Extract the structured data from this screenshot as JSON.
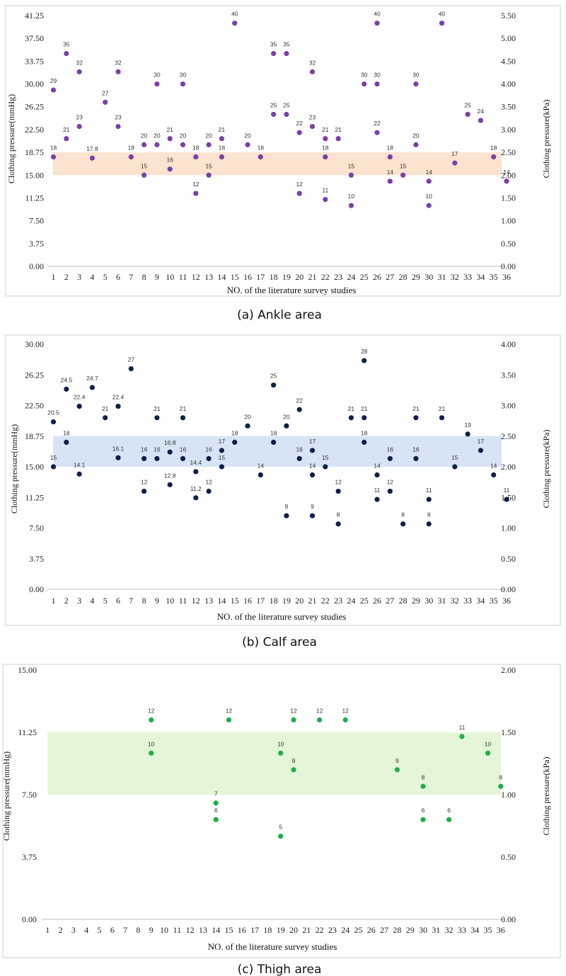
{
  "figure": {
    "panels": [
      "a",
      "b",
      "c"
    ]
  },
  "chart_data": [
    {
      "type": "scatter",
      "caption": "(a) Ankle area",
      "xlabel": "NO. of the literature survey studies",
      "ylabel": "Clothing pressure(mmHg)",
      "ylabel_right": "Clothing pressure(kPa)",
      "x_ticks": [
        "1",
        "2",
        "3",
        "4",
        "5",
        "6",
        "7",
        "8",
        "9",
        "10",
        "11",
        "12",
        "13",
        "14",
        "15",
        "16",
        "17",
        "18",
        "19",
        "20",
        "21",
        "22",
        "23",
        "24",
        "25",
        "26",
        "27",
        "28",
        "29",
        "30",
        "31",
        "32",
        "33",
        "34",
        "35",
        "36"
      ],
      "ylim": [
        0,
        41.25
      ],
      "y_ticks": [
        "0.00",
        "3.75",
        "7.50",
        "11.25",
        "15.00",
        "18.75",
        "22.50",
        "26.25",
        "30.00",
        "33.75",
        "37.50",
        "41.25"
      ],
      "y2lim": [
        0,
        5.5
      ],
      "y2_ticks": [
        "0.00",
        "0.50",
        "1.00",
        "1.50",
        "2.00",
        "2.50",
        "3.00",
        "3.50",
        "4.00",
        "4.50",
        "5.00",
        "5.50"
      ],
      "band": [
        15,
        18.75
      ],
      "colors": {
        "marker": "#7b3fa8",
        "band": "#fbe3cf"
      },
      "points": [
        {
          "x": 1,
          "y": 29,
          "label": "29"
        },
        {
          "x": 1,
          "y": 18,
          "label": "18"
        },
        {
          "x": 2,
          "y": 35,
          "label": "35"
        },
        {
          "x": 2,
          "y": 21,
          "label": "21"
        },
        {
          "x": 3,
          "y": 32,
          "label": "32"
        },
        {
          "x": 3,
          "y": 23,
          "label": "23"
        },
        {
          "x": 4,
          "y": 17.8,
          "label": "17.8"
        },
        {
          "x": 5,
          "y": 27,
          "label": "27"
        },
        {
          "x": 6,
          "y": 32,
          "label": "32"
        },
        {
          "x": 6,
          "y": 23,
          "label": "23"
        },
        {
          "x": 7,
          "y": 18,
          "label": "18"
        },
        {
          "x": 8,
          "y": 20,
          "label": "20"
        },
        {
          "x": 8,
          "y": 15,
          "label": "15"
        },
        {
          "x": 9,
          "y": 30,
          "label": "30"
        },
        {
          "x": 9,
          "y": 20,
          "label": "20"
        },
        {
          "x": 10,
          "y": 21,
          "label": "21"
        },
        {
          "x": 10,
          "y": 16,
          "label": "16"
        },
        {
          "x": 11,
          "y": 30,
          "label": "30"
        },
        {
          "x": 11,
          "y": 20,
          "label": "20"
        },
        {
          "x": 12,
          "y": 18,
          "label": "18"
        },
        {
          "x": 12,
          "y": 12,
          "label": "12"
        },
        {
          "x": 13,
          "y": 20,
          "label": "20"
        },
        {
          "x": 13,
          "y": 15,
          "label": "15"
        },
        {
          "x": 14,
          "y": 21,
          "label": "21"
        },
        {
          "x": 14,
          "y": 18,
          "label": "18"
        },
        {
          "x": 15,
          "y": 40,
          "label": "40"
        },
        {
          "x": 16,
          "y": 20,
          "label": "20"
        },
        {
          "x": 17,
          "y": 18,
          "label": "18"
        },
        {
          "x": 18,
          "y": 35,
          "label": "35"
        },
        {
          "x": 18,
          "y": 25,
          "label": "25"
        },
        {
          "x": 19,
          "y": 35,
          "label": "35"
        },
        {
          "x": 19,
          "y": 25,
          "label": "25"
        },
        {
          "x": 20,
          "y": 22,
          "label": "22"
        },
        {
          "x": 20,
          "y": 12,
          "label": "12"
        },
        {
          "x": 21,
          "y": 32,
          "label": "32"
        },
        {
          "x": 21,
          "y": 23,
          "label": "23"
        },
        {
          "x": 22,
          "y": 21,
          "label": "21"
        },
        {
          "x": 22,
          "y": 18,
          "label": "18"
        },
        {
          "x": 22,
          "y": 11,
          "label": "11"
        },
        {
          "x": 23,
          "y": 21,
          "label": "21"
        },
        {
          "x": 24,
          "y": 15,
          "label": "15"
        },
        {
          "x": 24,
          "y": 10,
          "label": "10"
        },
        {
          "x": 25,
          "y": 30,
          "label": "30"
        },
        {
          "x": 26,
          "y": 40,
          "label": "40"
        },
        {
          "x": 26,
          "y": 30,
          "label": "30"
        },
        {
          "x": 26,
          "y": 22,
          "label": "22"
        },
        {
          "x": 27,
          "y": 18,
          "label": "18"
        },
        {
          "x": 27,
          "y": 14,
          "label": "14"
        },
        {
          "x": 28,
          "y": 15,
          "label": "15"
        },
        {
          "x": 29,
          "y": 30,
          "label": "30"
        },
        {
          "x": 29,
          "y": 20,
          "label": "20"
        },
        {
          "x": 30,
          "y": 14,
          "label": "14"
        },
        {
          "x": 30,
          "y": 10,
          "label": "10"
        },
        {
          "x": 31,
          "y": 40,
          "label": "40"
        },
        {
          "x": 32,
          "y": 17,
          "label": "17"
        },
        {
          "x": 33,
          "y": 25,
          "label": "25"
        },
        {
          "x": 34,
          "y": 24,
          "label": "24"
        },
        {
          "x": 35,
          "y": 18,
          "label": "18"
        },
        {
          "x": 36,
          "y": 14,
          "label": "14"
        }
      ]
    },
    {
      "type": "scatter",
      "caption": "(b) Calf area",
      "xlabel": "NO. of the literature survey studies",
      "ylabel": "Clothing pressure(mmHg)",
      "ylabel_right": "Clothing pressure(kPa)",
      "x_ticks": [
        "1",
        "2",
        "3",
        "4",
        "5",
        "6",
        "7",
        "8",
        "9",
        "10",
        "11",
        "12",
        "13",
        "14",
        "15",
        "16",
        "17",
        "18",
        "19",
        "20",
        "21",
        "22",
        "23",
        "24",
        "25",
        "26",
        "27",
        "28",
        "29",
        "30",
        "31",
        "32",
        "33",
        "34",
        "35",
        "36"
      ],
      "ylim": [
        0,
        30
      ],
      "y_ticks": [
        "0.00",
        "3.75",
        "7.50",
        "11.25",
        "15.00",
        "18.75",
        "22.50",
        "26.25",
        "30.00"
      ],
      "y2lim": [
        0,
        4
      ],
      "y2_ticks": [
        "0.00",
        "0.50",
        "1.00",
        "1.50",
        "2.00",
        "2.50",
        "3.00",
        "3.50",
        "4.00"
      ],
      "band": [
        15,
        18.75
      ],
      "colors": {
        "marker": "#0f1f4a",
        "band": "#d6e4f5"
      },
      "points": [
        {
          "x": 1,
          "y": 20.5,
          "label": "20.5"
        },
        {
          "x": 1,
          "y": 15,
          "label": "15"
        },
        {
          "x": 2,
          "y": 24.5,
          "label": "24.5"
        },
        {
          "x": 2,
          "y": 18,
          "label": "18"
        },
        {
          "x": 3,
          "y": 22.4,
          "label": "22.4"
        },
        {
          "x": 3,
          "y": 14.1,
          "label": "14.1"
        },
        {
          "x": 4,
          "y": 24.7,
          "label": "24.7"
        },
        {
          "x": 5,
          "y": 21,
          "label": "21"
        },
        {
          "x": 6,
          "y": 22.4,
          "label": "22.4"
        },
        {
          "x": 6,
          "y": 16.1,
          "label": "16.1"
        },
        {
          "x": 7,
          "y": 27,
          "label": "27"
        },
        {
          "x": 8,
          "y": 16,
          "label": "16"
        },
        {
          "x": 8,
          "y": 12,
          "label": "12"
        },
        {
          "x": 9,
          "y": 21,
          "label": "21"
        },
        {
          "x": 9,
          "y": 16,
          "label": "16"
        },
        {
          "x": 10,
          "y": 16.8,
          "label": "16.8"
        },
        {
          "x": 10,
          "y": 12.8,
          "label": "12.8"
        },
        {
          "x": 11,
          "y": 21,
          "label": "21"
        },
        {
          "x": 11,
          "y": 16,
          "label": "16"
        },
        {
          "x": 12,
          "y": 14.4,
          "label": "14.4"
        },
        {
          "x": 12,
          "y": 11.2,
          "label": "11.2"
        },
        {
          "x": 13,
          "y": 16,
          "label": "16"
        },
        {
          "x": 13,
          "y": 12,
          "label": "12"
        },
        {
          "x": 14,
          "y": 17,
          "label": "17"
        },
        {
          "x": 14,
          "y": 15,
          "label": "15"
        },
        {
          "x": 15,
          "y": 18,
          "label": "18"
        },
        {
          "x": 16,
          "y": 20,
          "label": "20"
        },
        {
          "x": 17,
          "y": 14,
          "label": "14"
        },
        {
          "x": 18,
          "y": 25,
          "label": "25"
        },
        {
          "x": 18,
          "y": 18,
          "label": "18"
        },
        {
          "x": 19,
          "y": 20,
          "label": "20"
        },
        {
          "x": 19,
          "y": 9,
          "label": "9"
        },
        {
          "x": 20,
          "y": 22,
          "label": "22"
        },
        {
          "x": 20,
          "y": 16,
          "label": "16"
        },
        {
          "x": 21,
          "y": 17,
          "label": "17"
        },
        {
          "x": 21,
          "y": 14,
          "label": "14"
        },
        {
          "x": 21,
          "y": 9,
          "label": "9"
        },
        {
          "x": 22,
          "y": 15,
          "label": "15"
        },
        {
          "x": 23,
          "y": 12,
          "label": "12"
        },
        {
          "x": 23,
          "y": 8,
          "label": "8"
        },
        {
          "x": 24,
          "y": 21,
          "label": "21"
        },
        {
          "x": 25,
          "y": 28,
          "label": "28"
        },
        {
          "x": 25,
          "y": 21,
          "label": "21"
        },
        {
          "x": 25,
          "y": 18,
          "label": "18"
        },
        {
          "x": 26,
          "y": 14,
          "label": "14"
        },
        {
          "x": 26,
          "y": 11,
          "label": "11"
        },
        {
          "x": 27,
          "y": 16,
          "label": "16"
        },
        {
          "x": 27,
          "y": 12,
          "label": "12"
        },
        {
          "x": 28,
          "y": 8,
          "label": "8"
        },
        {
          "x": 29,
          "y": 21,
          "label": "21"
        },
        {
          "x": 29,
          "y": 16,
          "label": "16"
        },
        {
          "x": 30,
          "y": 11,
          "label": "11"
        },
        {
          "x": 30,
          "y": 8,
          "label": "8"
        },
        {
          "x": 31,
          "y": 21,
          "label": "21"
        },
        {
          "x": 32,
          "y": 15,
          "label": "15"
        },
        {
          "x": 33,
          "y": 19,
          "label": "19"
        },
        {
          "x": 34,
          "y": 17,
          "label": "17"
        },
        {
          "x": 35,
          "y": 14,
          "label": "14"
        },
        {
          "x": 36,
          "y": 11,
          "label": "11"
        }
      ]
    },
    {
      "type": "scatter",
      "caption": "(c) Thigh area",
      "xlabel": "NO. of the literature survey studies",
      "ylabel": "Clothing pressure(mmHg)",
      "ylabel_right": "Clothing pressure(kPa)",
      "x_ticks": [
        "1",
        "2",
        "3",
        "4",
        "5",
        "6",
        "7",
        "8",
        "9",
        "10",
        "11",
        "12",
        "13",
        "14",
        "15",
        "16",
        "17",
        "18",
        "19",
        "20",
        "21",
        "22",
        "23",
        "24",
        "25",
        "26",
        "27",
        "28",
        "29",
        "30",
        "31",
        "32",
        "33",
        "34",
        "35",
        "36"
      ],
      "ylim": [
        0,
        15
      ],
      "y_ticks": [
        "0.00",
        "3.75",
        "7.50",
        "11.25",
        "15.00"
      ],
      "y2lim": [
        0,
        2
      ],
      "y2_ticks": [
        "0.00",
        "0.50",
        "1.00",
        "1.50",
        "2.00"
      ],
      "band": [
        7.5,
        11.25
      ],
      "colors": {
        "marker": "#1fae4b",
        "band": "#e4f5d8"
      },
      "points": [
        {
          "x": 9,
          "y": 12,
          "label": "12"
        },
        {
          "x": 9,
          "y": 10,
          "label": "10"
        },
        {
          "x": 14,
          "y": 7,
          "label": "7"
        },
        {
          "x": 14,
          "y": 6,
          "label": "6"
        },
        {
          "x": 15,
          "y": 12,
          "label": "12"
        },
        {
          "x": 19,
          "y": 10,
          "label": "10"
        },
        {
          "x": 19,
          "y": 5,
          "label": "5"
        },
        {
          "x": 20,
          "y": 12,
          "label": "12"
        },
        {
          "x": 20,
          "y": 9,
          "label": "9"
        },
        {
          "x": 22,
          "y": 12,
          "label": "12"
        },
        {
          "x": 24,
          "y": 12,
          "label": "12"
        },
        {
          "x": 28,
          "y": 9,
          "label": "9"
        },
        {
          "x": 30,
          "y": 8,
          "label": "8"
        },
        {
          "x": 30,
          "y": 6,
          "label": "6"
        },
        {
          "x": 32,
          "y": 6,
          "label": "6"
        },
        {
          "x": 33,
          "y": 11,
          "label": "11"
        },
        {
          "x": 35,
          "y": 10,
          "label": "10"
        },
        {
          "x": 36,
          "y": 8,
          "label": "8"
        }
      ]
    }
  ]
}
